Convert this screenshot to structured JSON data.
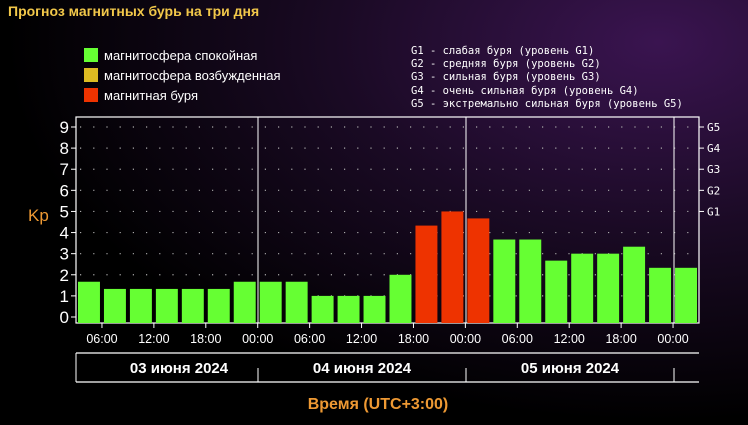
{
  "title": "Прогноз магнитных бурь на три дня",
  "legend": [
    {
      "label": "магнитосфера спокойная",
      "color": "#66ff33"
    },
    {
      "label": "магнитосфера возбужденная",
      "color": "#ddbb22"
    },
    {
      "label": "магнитная буря",
      "color": "#ee3300"
    }
  ],
  "storm_levels": [
    "G1 - слабая буря (уровень G1)",
    "G2 - средняя буря (уровень G2)",
    "G3 - сильная буря (уровень G3)",
    "G4 - очень сильная буря (уровень G4)",
    "G5 - экстремально сильная буря (уровень G5)"
  ],
  "chart_data": {
    "type": "bar",
    "ylabel": "Kp",
    "xlabel": "Время (UTC+3:00)",
    "ylim": [
      0,
      9
    ],
    "y_ticks": [
      "0",
      "1",
      "2",
      "3",
      "4",
      "5",
      "6",
      "7",
      "8",
      "9"
    ],
    "g_ticks": [
      {
        "label": "G1",
        "kp": 5
      },
      {
        "label": "G2",
        "kp": 6
      },
      {
        "label": "G3",
        "kp": 7
      },
      {
        "label": "G4",
        "kp": 8
      },
      {
        "label": "G5",
        "kp": 9
      }
    ],
    "x_ticks": [
      "06:00",
      "12:00",
      "18:00",
      "00:00",
      "06:00",
      "12:00",
      "18:00",
      "00:00",
      "06:00",
      "12:00",
      "18:00",
      "00:00"
    ],
    "days": [
      "03 июня 2024",
      "04 июня 2024",
      "05 июня 2024"
    ],
    "values": [
      1.67,
      1.33,
      1.33,
      1.33,
      1.33,
      1.33,
      1.67,
      1.67,
      1.67,
      1.0,
      1.0,
      1.0,
      2.0,
      4.33,
      5.0,
      4.67,
      3.67,
      3.67,
      2.67,
      3.0,
      3.0,
      3.33,
      2.33,
      2.33
    ],
    "levels": [
      "quiet",
      "quiet",
      "quiet",
      "quiet",
      "quiet",
      "quiet",
      "quiet",
      "quiet",
      "quiet",
      "quiet",
      "quiet",
      "quiet",
      "quiet",
      "storm",
      "storm",
      "storm",
      "quiet",
      "quiet",
      "quiet",
      "quiet",
      "quiet",
      "quiet",
      "quiet",
      "quiet"
    ],
    "colors": {
      "quiet": "#66ff33",
      "active": "#ddbb22",
      "storm": "#ee3300"
    },
    "grid": "dotted"
  }
}
